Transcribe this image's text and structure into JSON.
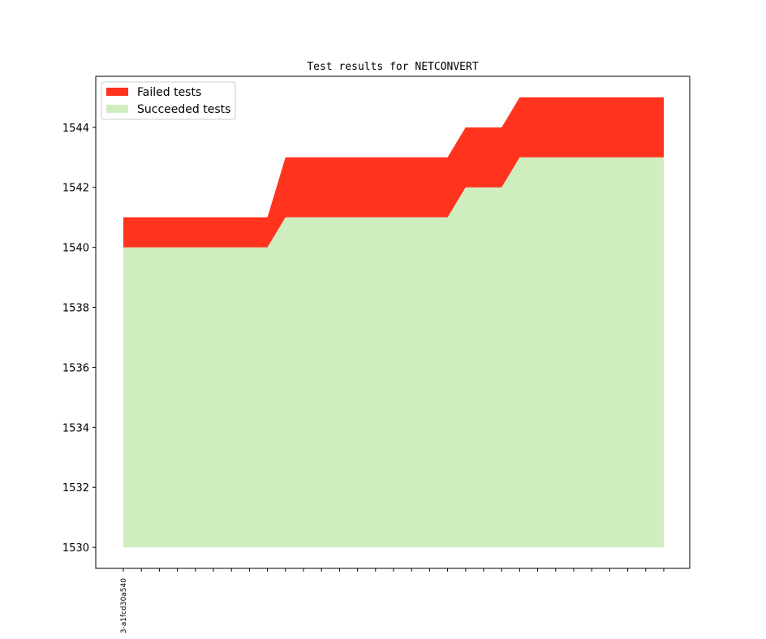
{
  "chart_data": {
    "type": "area",
    "title": "Test results for NETCONVERT",
    "xlabel": "",
    "ylabel": "",
    "ylim": [
      1529.3,
      1545.7
    ],
    "y_ticks": [
      "1530",
      "1532",
      "1534",
      "1536",
      "1538",
      "1540",
      "1542",
      "1544"
    ],
    "x_count": 31,
    "x_tick_labels": [
      "3-a1fcd30a540"
    ],
    "stack_base": 1530,
    "series": [
      {
        "name": "Succeeded tests",
        "color": "#cfedbe",
        "values": [
          1540,
          1540,
          1540,
          1540,
          1540,
          1540,
          1540,
          1540,
          1540,
          1541,
          1541,
          1541,
          1541,
          1541,
          1541,
          1541,
          1541,
          1541,
          1541,
          1542,
          1542,
          1542,
          1543,
          1543,
          1543,
          1543,
          1543,
          1543,
          1543,
          1543,
          1543
        ]
      },
      {
        "name": "Failed tests",
        "color": "#ff331e",
        "values": [
          1,
          1,
          1,
          1,
          1,
          1,
          1,
          1,
          1,
          2,
          2,
          2,
          2,
          2,
          2,
          2,
          2,
          2,
          2,
          2,
          2,
          2,
          2,
          2,
          2,
          2,
          2,
          2,
          2,
          2,
          2
        ]
      }
    ],
    "legend_position": "upper-left",
    "grid": false
  }
}
